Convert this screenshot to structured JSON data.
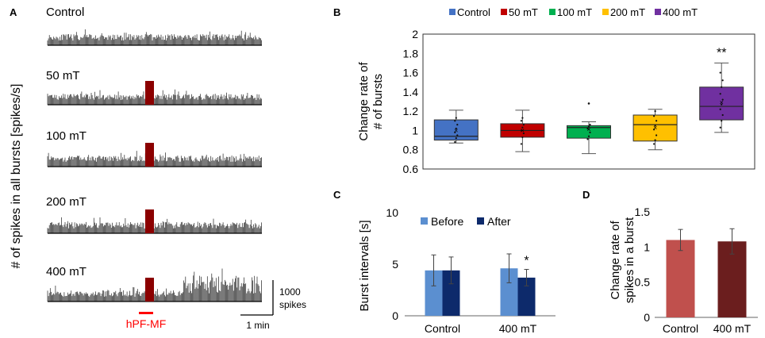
{
  "panels": {
    "A": {
      "letter": "A",
      "ylabel": "# of spikes in all bursts [spikes/s]",
      "traces": [
        {
          "label": "Control",
          "stim": false,
          "late_increase": false
        },
        {
          "label": "50 mT",
          "stim": true,
          "late_increase": false
        },
        {
          "label": "100 mT",
          "stim": true,
          "late_increase": false
        },
        {
          "label": "200 mT",
          "stim": true,
          "late_increase": false
        },
        {
          "label": "400 mT",
          "stim": true,
          "late_increase": true
        }
      ],
      "stim_label": "hPF-MF",
      "scalebar_y_label1": "1000",
      "scalebar_y_label2": "spikes",
      "scalebar_x_label": "1 min"
    },
    "B": {
      "letter": "B"
    },
    "C": {
      "letter": "C"
    },
    "D": {
      "letter": "D"
    }
  },
  "colors": {
    "control": "#4472C4",
    "mt50": "#C00000",
    "mt100": "#00B050",
    "mt200": "#FFC000",
    "mt400": "#7030A0",
    "before": "#5B8FD0",
    "after": "#0D2A6B",
    "d_control": "#C0504D",
    "d_400": "#6B1E1E",
    "stim": "#8B0000",
    "stim_label": "#FF0000"
  },
  "chart_data": [
    {
      "id": "B",
      "type": "box",
      "title": "",
      "ylabel_line1": "Change rate of",
      "ylabel_line2": "# of bursts",
      "ylim": [
        0.6,
        2
      ],
      "yticks": [
        "0.6",
        "0.8",
        "1",
        "1.2",
        "1.4",
        "1.6",
        "1.8",
        "2"
      ],
      "legend_position": "top",
      "significance": [
        "",
        "",
        "",
        "",
        "**"
      ],
      "series": [
        {
          "name": "Control",
          "min": 0.87,
          "q1": 0.9,
          "median": 0.94,
          "q3": 1.11,
          "max": 1.21,
          "mean": 1.0,
          "points": [
            0.88,
            0.92,
            0.95,
            0.98,
            1.02,
            1.06,
            1.1,
            1.13
          ]
        },
        {
          "name": "50 mT",
          "min": 0.78,
          "q1": 0.93,
          "median": 1.0,
          "q3": 1.07,
          "max": 1.21,
          "mean": 1.0,
          "points": [
            0.86,
            0.93,
            0.97,
            1.0,
            1.03,
            1.06,
            1.1,
            1.13
          ]
        },
        {
          "name": "100 mT",
          "min": 0.76,
          "q1": 0.92,
          "median": 1.03,
          "q3": 1.05,
          "max": 1.09,
          "mean": 1.01,
          "outliers": [
            1.28
          ],
          "points": [
            0.91,
            0.94,
            0.98,
            1.02,
            1.04,
            1.06
          ]
        },
        {
          "name": "200 mT",
          "min": 0.8,
          "q1": 0.89,
          "median": 1.06,
          "q3": 1.16,
          "max": 1.22,
          "mean": 1.03,
          "points": [
            0.86,
            0.9,
            0.95,
            1.01,
            1.05,
            1.1,
            1.15,
            1.2
          ]
        },
        {
          "name": "400 mT",
          "min": 0.98,
          "q1": 1.11,
          "median": 1.25,
          "q3": 1.45,
          "max": 1.7,
          "mean": 1.29,
          "points": [
            1.03,
            1.1,
            1.16,
            1.22,
            1.27,
            1.32,
            1.38,
            1.45,
            1.52,
            1.6
          ]
        }
      ]
    },
    {
      "id": "C",
      "type": "bar",
      "ylabel": "Burst intervals [s]",
      "ylim": [
        0,
        10
      ],
      "yticks": [
        "0",
        "5",
        "10"
      ],
      "categories": [
        "Control",
        "400 mT"
      ],
      "legend_position": "top",
      "significance": [
        "",
        "*"
      ],
      "series": [
        {
          "name": "Before",
          "values": [
            4.4,
            4.6
          ],
          "errors": [
            1.5,
            1.4
          ]
        },
        {
          "name": "After",
          "values": [
            4.4,
            3.7
          ],
          "errors": [
            1.3,
            0.8
          ]
        }
      ]
    },
    {
      "id": "D",
      "type": "bar",
      "ylabel_line1": "Change rate of",
      "ylabel_line2": "spikes in a burst",
      "ylim": [
        0,
        1.5
      ],
      "yticks": [
        "0",
        "0.5",
        "1",
        "1.5"
      ],
      "categories": [
        "Control",
        "400 mT"
      ],
      "values": [
        1.1,
        1.08
      ],
      "errors": [
        0.15,
        0.18
      ]
    }
  ]
}
